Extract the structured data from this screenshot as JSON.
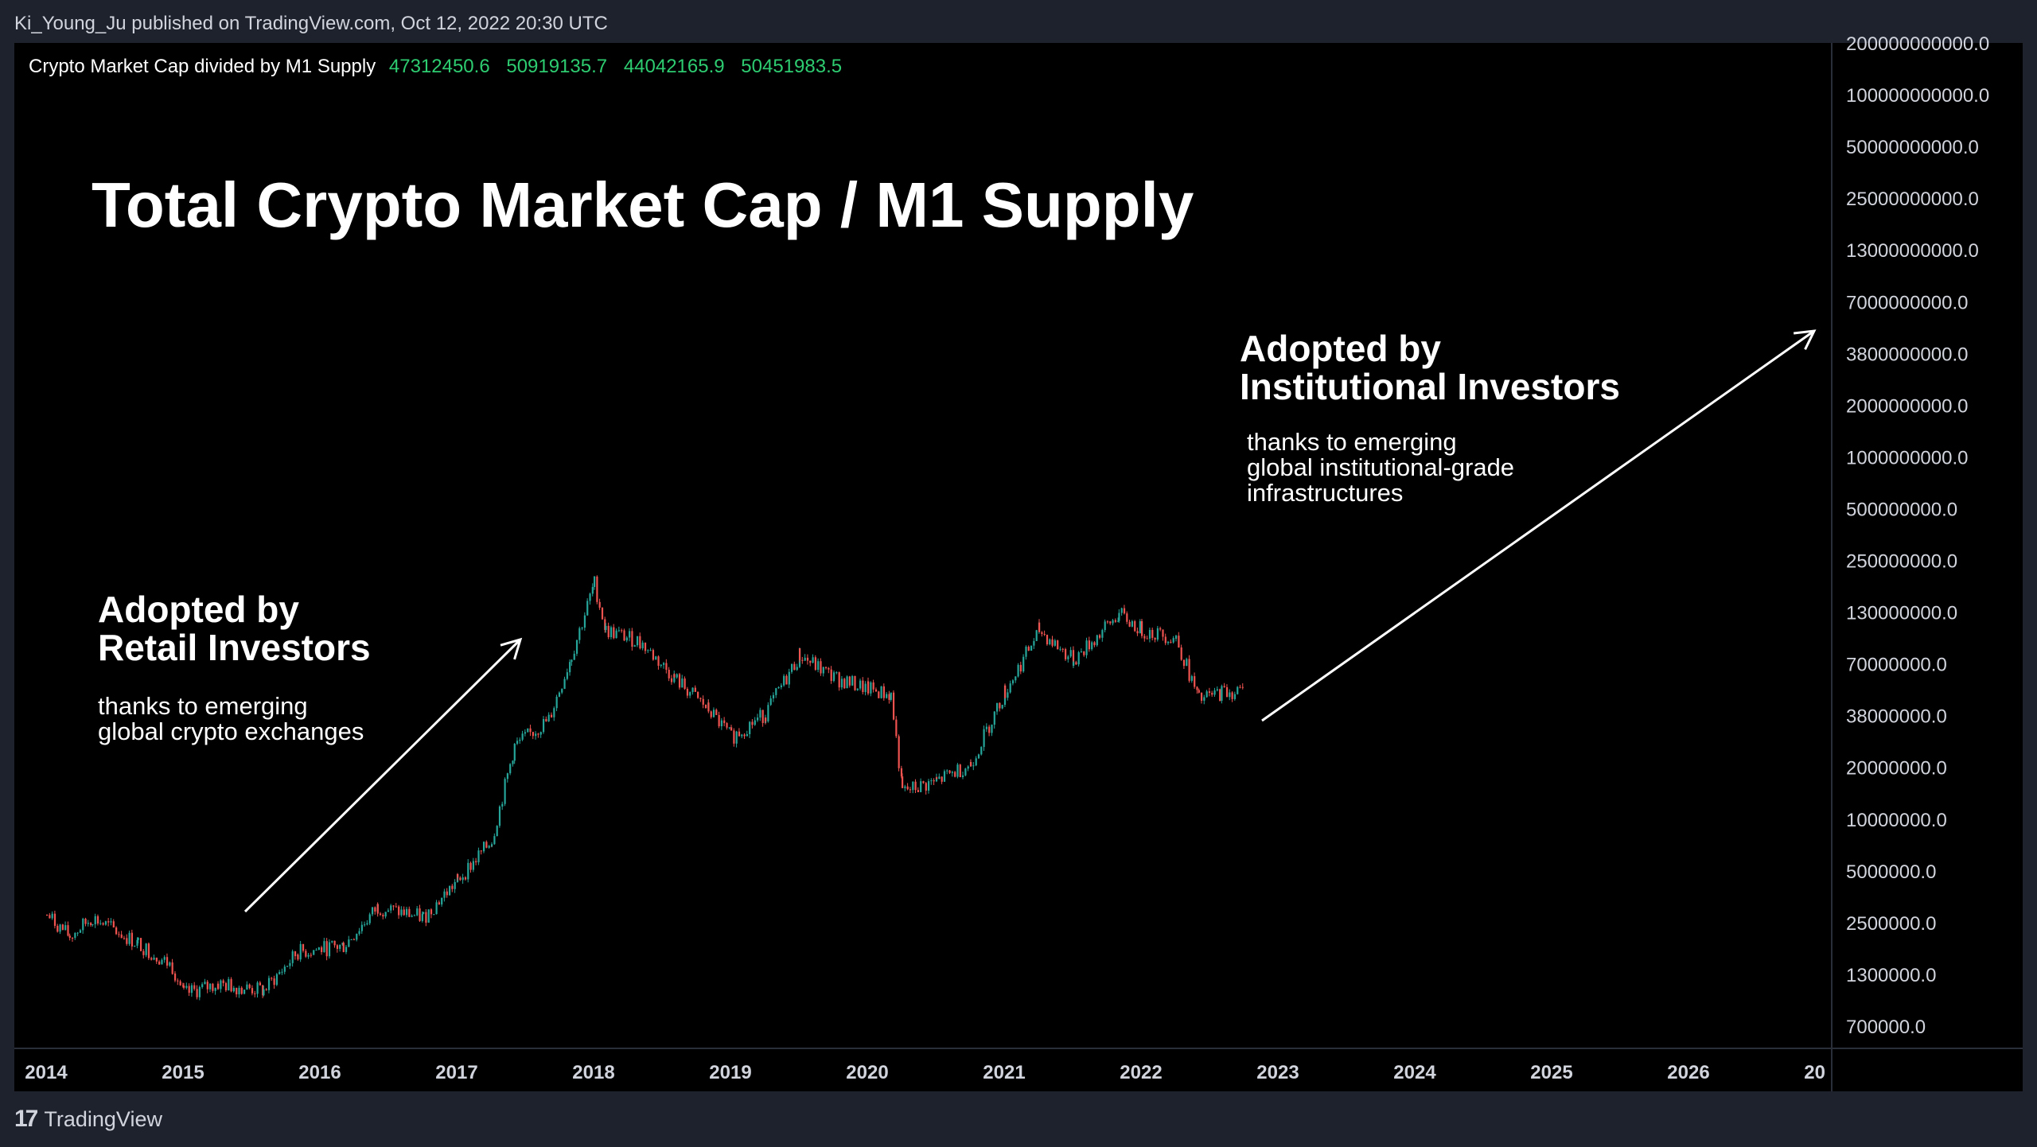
{
  "header": {
    "published_text": "Ki_Young_Ju published on TradingView.com, Oct 12, 2022 20:30 UTC"
  },
  "legend": {
    "symbol": "Crypto Market Cap divided by M1 Supply",
    "open": "47312450.6",
    "high": "50919135.7",
    "low": "44042165.9",
    "close": "50451983.5"
  },
  "annotations": {
    "title": "Total Crypto Market Cap / M1 Supply",
    "retail_heading_1": "Adopted by",
    "retail_heading_2": "Retail Investors",
    "retail_sub_1": "thanks to emerging",
    "retail_sub_2": "global crypto exchanges",
    "inst_heading_1": "Adopted by",
    "inst_heading_2": "Institutional Investors",
    "inst_sub_1": "thanks to emerging",
    "inst_sub_2": "global institutional-grade",
    "inst_sub_3": "infrastructures"
  },
  "footer": {
    "logo_mark": "17",
    "brand": "TradingView"
  },
  "colors": {
    "background": "#000000",
    "up": "#26a69a",
    "down": "#ef5350",
    "text": "#ffffff",
    "axis_text": "#d1d4dc",
    "frame": "#1e222d"
  },
  "chart_data": {
    "type": "candlestick",
    "scale": "log",
    "y_tick_labels": [
      "200000000000.0",
      "100000000000.0",
      "50000000000.0",
      "25000000000.0",
      "13000000000.0",
      "7000000000.0",
      "3800000000.0",
      "2000000000.0",
      "1000000000.0",
      "500000000.0",
      "250000000.0",
      "130000000.0",
      "70000000.0",
      "38000000.0",
      "20000000.0",
      "10000000.0",
      "5000000.0",
      "2500000.0",
      "1300000.0",
      "700000.0"
    ],
    "x_tick_labels": [
      "2014",
      "2015",
      "2016",
      "2017",
      "2018",
      "2019",
      "2020",
      "2021",
      "2022",
      "2023",
      "2024",
      "2025",
      "2026",
      "20"
    ],
    "last_candle": {
      "open": 47312450.6,
      "high": 50919135.7,
      "low": 44042165.9,
      "close": 50451983.5
    },
    "series_close_approx": [
      {
        "x": "2014-01",
        "y": 2900000
      },
      {
        "x": "2014-03",
        "y": 2200000
      },
      {
        "x": "2014-05",
        "y": 2800000
      },
      {
        "x": "2014-09",
        "y": 2000000
      },
      {
        "x": "2014-12",
        "y": 1500000
      },
      {
        "x": "2015-01",
        "y": 1050000
      },
      {
        "x": "2015-04",
        "y": 1200000
      },
      {
        "x": "2015-08",
        "y": 1100000
      },
      {
        "x": "2015-11",
        "y": 1800000
      },
      {
        "x": "2016-03",
        "y": 1950000
      },
      {
        "x": "2016-06",
        "y": 3200000
      },
      {
        "x": "2016-10",
        "y": 2800000
      },
      {
        "x": "2017-01",
        "y": 4500000
      },
      {
        "x": "2017-04",
        "y": 7500000
      },
      {
        "x": "2017-06",
        "y": 25000000
      },
      {
        "x": "2017-09",
        "y": 35000000
      },
      {
        "x": "2017-11",
        "y": 80000000
      },
      {
        "x": "2018-01",
        "y": 200000000
      },
      {
        "x": "2018-02",
        "y": 110000000
      },
      {
        "x": "2018-05",
        "y": 95000000
      },
      {
        "x": "2018-08",
        "y": 60000000
      },
      {
        "x": "2018-11",
        "y": 40000000
      },
      {
        "x": "2019-01",
        "y": 28000000
      },
      {
        "x": "2019-04",
        "y": 38000000
      },
      {
        "x": "2019-07",
        "y": 80000000
      },
      {
        "x": "2019-10",
        "y": 60000000
      },
      {
        "x": "2020-01",
        "y": 52000000
      },
      {
        "x": "2020-03",
        "y": 48000000
      },
      {
        "x": "2020-04",
        "y": 14000000
      },
      {
        "x": "2020-07",
        "y": 16000000
      },
      {
        "x": "2020-10",
        "y": 20000000
      },
      {
        "x": "2021-01",
        "y": 50000000
      },
      {
        "x": "2021-04",
        "y": 110000000
      },
      {
        "x": "2021-07",
        "y": 75000000
      },
      {
        "x": "2021-11",
        "y": 135000000
      },
      {
        "x": "2022-01",
        "y": 110000000
      },
      {
        "x": "2022-04",
        "y": 100000000
      },
      {
        "x": "2022-06",
        "y": 45000000
      },
      {
        "x": "2022-08",
        "y": 50000000
      },
      {
        "x": "2022-10",
        "y": 50451983.5
      }
    ]
  }
}
